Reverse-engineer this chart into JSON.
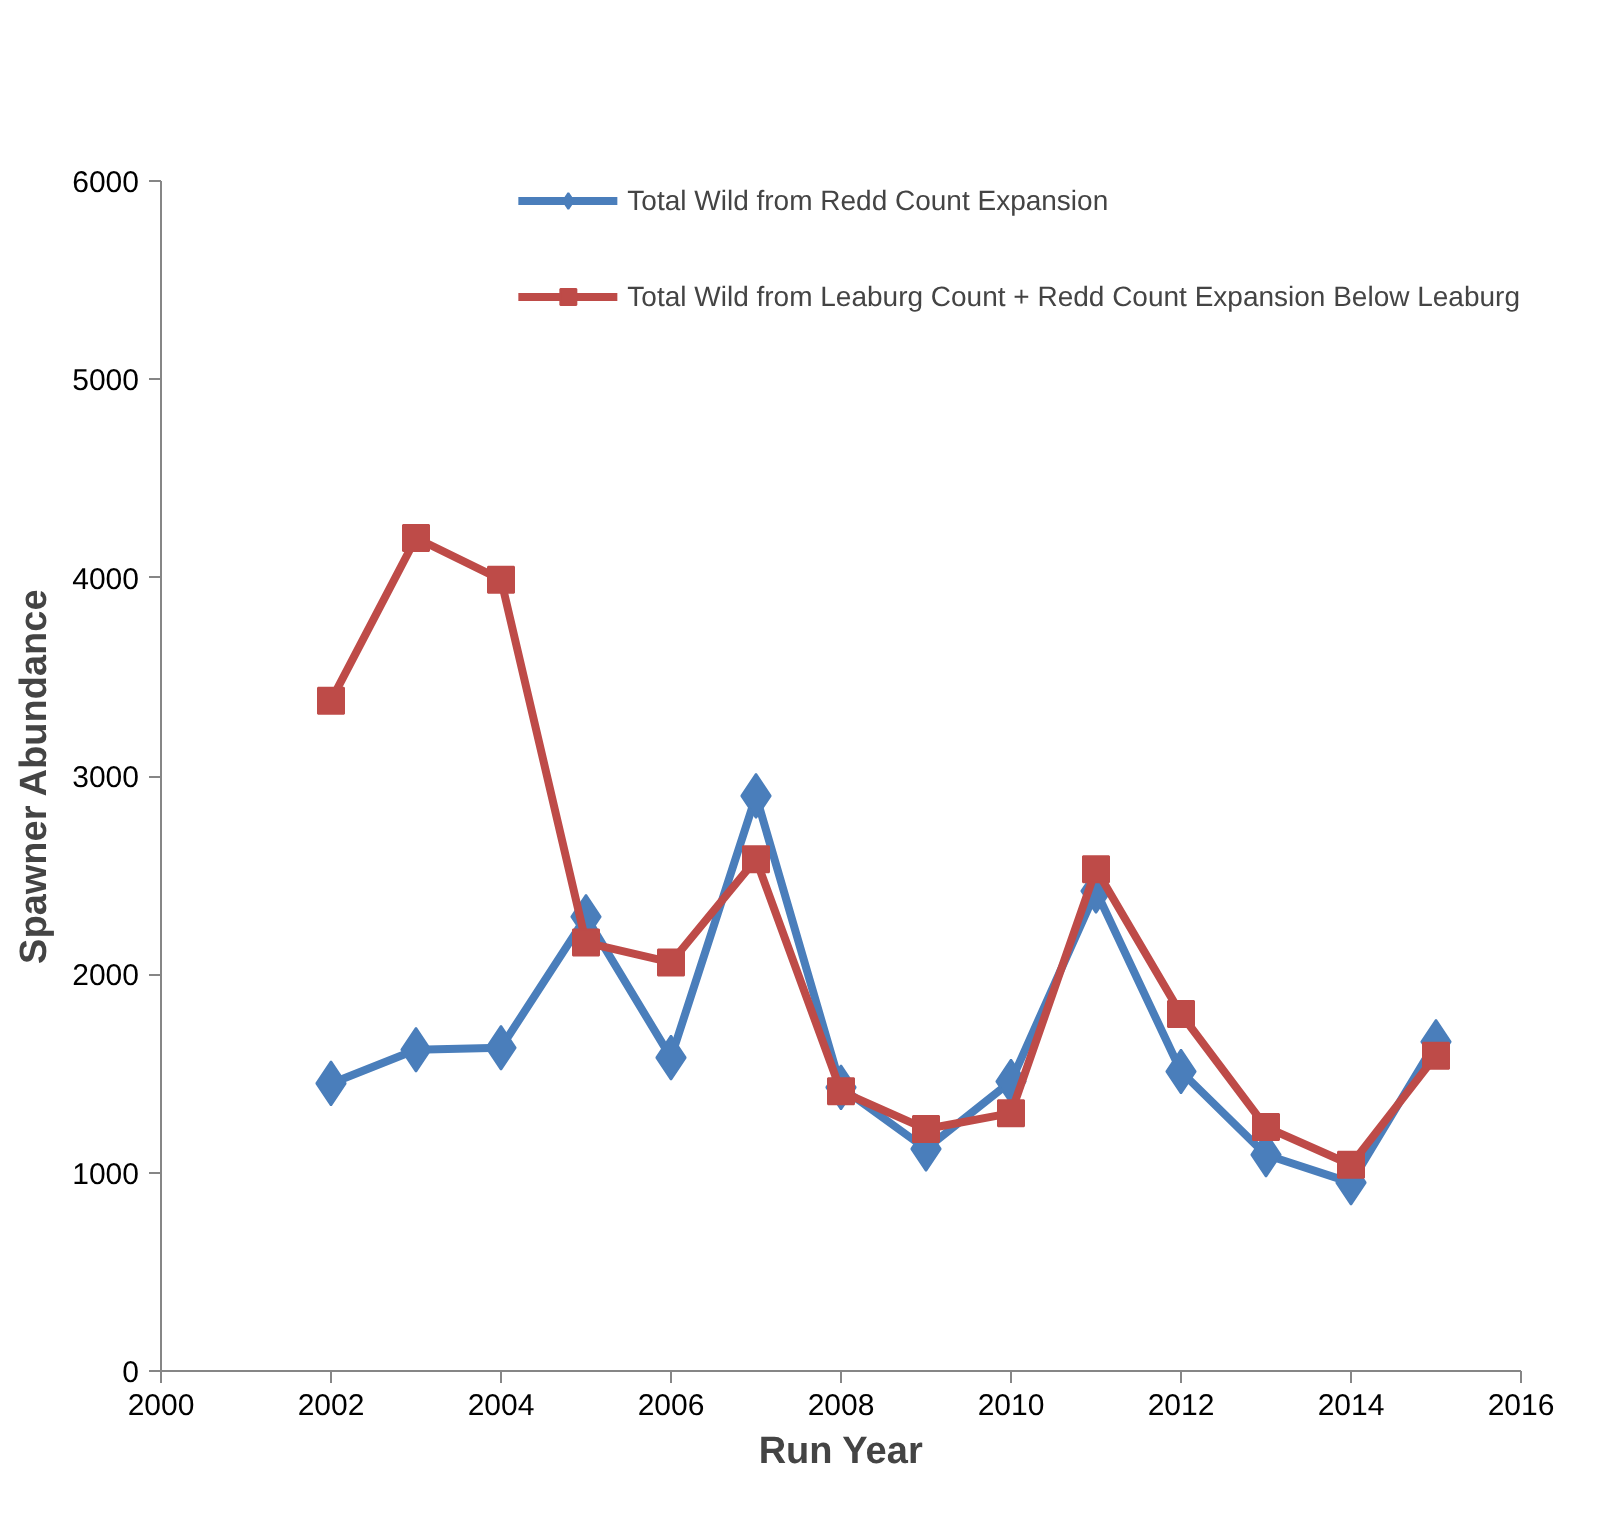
{
  "chart_data": {
    "type": "line",
    "xlabel": "Run Year",
    "ylabel": "Spawner Abundance",
    "x": [
      2002,
      2003,
      2004,
      2005,
      2006,
      2007,
      2008,
      2009,
      2010,
      2011,
      2012,
      2013,
      2014,
      2015
    ],
    "series": [
      {
        "name": "Total Wild from Redd Count Expansion",
        "color": "#4a7ebb",
        "marker": "diamond",
        "values": [
          1450,
          1620,
          1630,
          2290,
          1580,
          2900,
          1430,
          1120,
          1460,
          2420,
          1510,
          1090,
          950,
          1660
        ]
      },
      {
        "name": "Total Wild from Leaburg Count + Redd Count Expansion Below Leaburg",
        "color": "#be4b48",
        "marker": "square",
        "values": [
          3380,
          4200,
          3990,
          2160,
          2060,
          2580,
          1410,
          1220,
          1300,
          2530,
          1800,
          1230,
          1040,
          1590
        ]
      }
    ],
    "xlim": [
      2000,
      2016
    ],
    "xticks": [
      2000,
      2002,
      2004,
      2006,
      2008,
      2010,
      2012,
      2014,
      2016
    ],
    "ylim": [
      0,
      6000
    ],
    "yticks": [
      0,
      1000,
      2000,
      3000,
      4000,
      5000,
      6000
    ],
    "grid": false,
    "legend": "top right",
    "line_style": "solid"
  }
}
